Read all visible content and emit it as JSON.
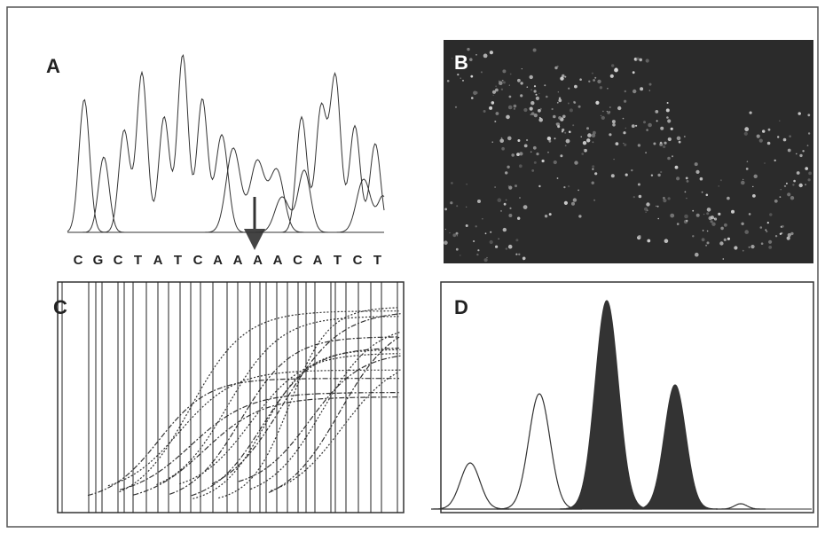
{
  "panels": {
    "a": {
      "label": "A",
      "sequence": [
        "C",
        "G",
        "C",
        "T",
        "A",
        "T",
        "C",
        "A",
        "A",
        "A",
        "A",
        "C",
        "A",
        "T",
        "C",
        "T"
      ]
    },
    "b": {
      "label": "B"
    },
    "c": {
      "label": "C"
    },
    "d": {
      "label": "D"
    }
  }
}
